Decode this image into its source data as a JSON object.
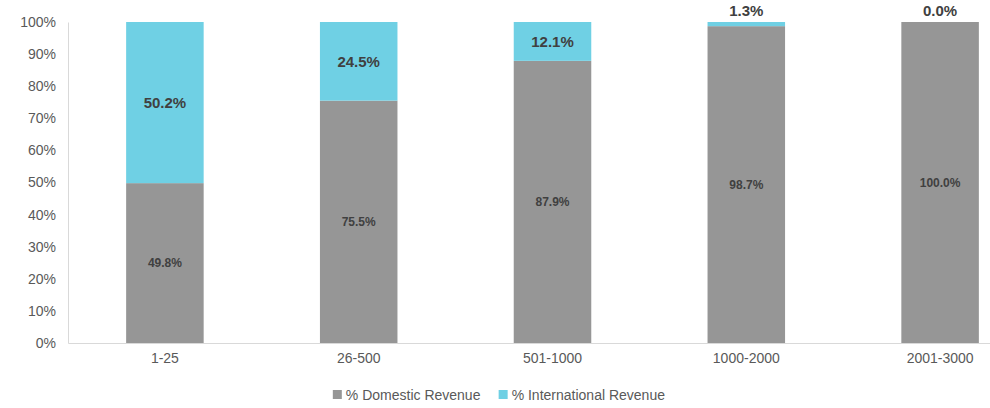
{
  "chart_data": {
    "type": "bar",
    "stacked": true,
    "data_labels": true,
    "grid": false,
    "legend": "bottom",
    "categories": [
      "1-25",
      "26-500",
      "501-1000",
      "1000-2000",
      "2001-3000"
    ],
    "series": [
      {
        "name": "% Domestic Revenue",
        "color": "#969696",
        "values": [
          49.8,
          75.5,
          87.9,
          98.7,
          100.0
        ],
        "value_labels": [
          "49.8%",
          "75.5%",
          "87.9%",
          "98.7%",
          "100.0%"
        ]
      },
      {
        "name": "% International Revenue",
        "color": "#6fd0e4",
        "values": [
          50.2,
          24.5,
          12.1,
          1.3,
          0.0
        ],
        "value_labels": [
          "50.2%",
          "24.5%",
          "12.1%",
          "1.3%",
          "0.0%"
        ]
      }
    ],
    "ylim": [
      0,
      100
    ],
    "yticks": [
      {
        "value": 0,
        "label": "0%"
      },
      {
        "value": 10,
        "label": "10%"
      },
      {
        "value": 20,
        "label": "20%"
      },
      {
        "value": 30,
        "label": "30%"
      },
      {
        "value": 40,
        "label": "40%"
      },
      {
        "value": 50,
        "label": "50%"
      },
      {
        "value": 60,
        "label": "60%"
      },
      {
        "value": 70,
        "label": "70%"
      },
      {
        "value": 80,
        "label": "80%"
      },
      {
        "value": 90,
        "label": "90%"
      },
      {
        "value": 100,
        "label": "100%"
      }
    ]
  }
}
